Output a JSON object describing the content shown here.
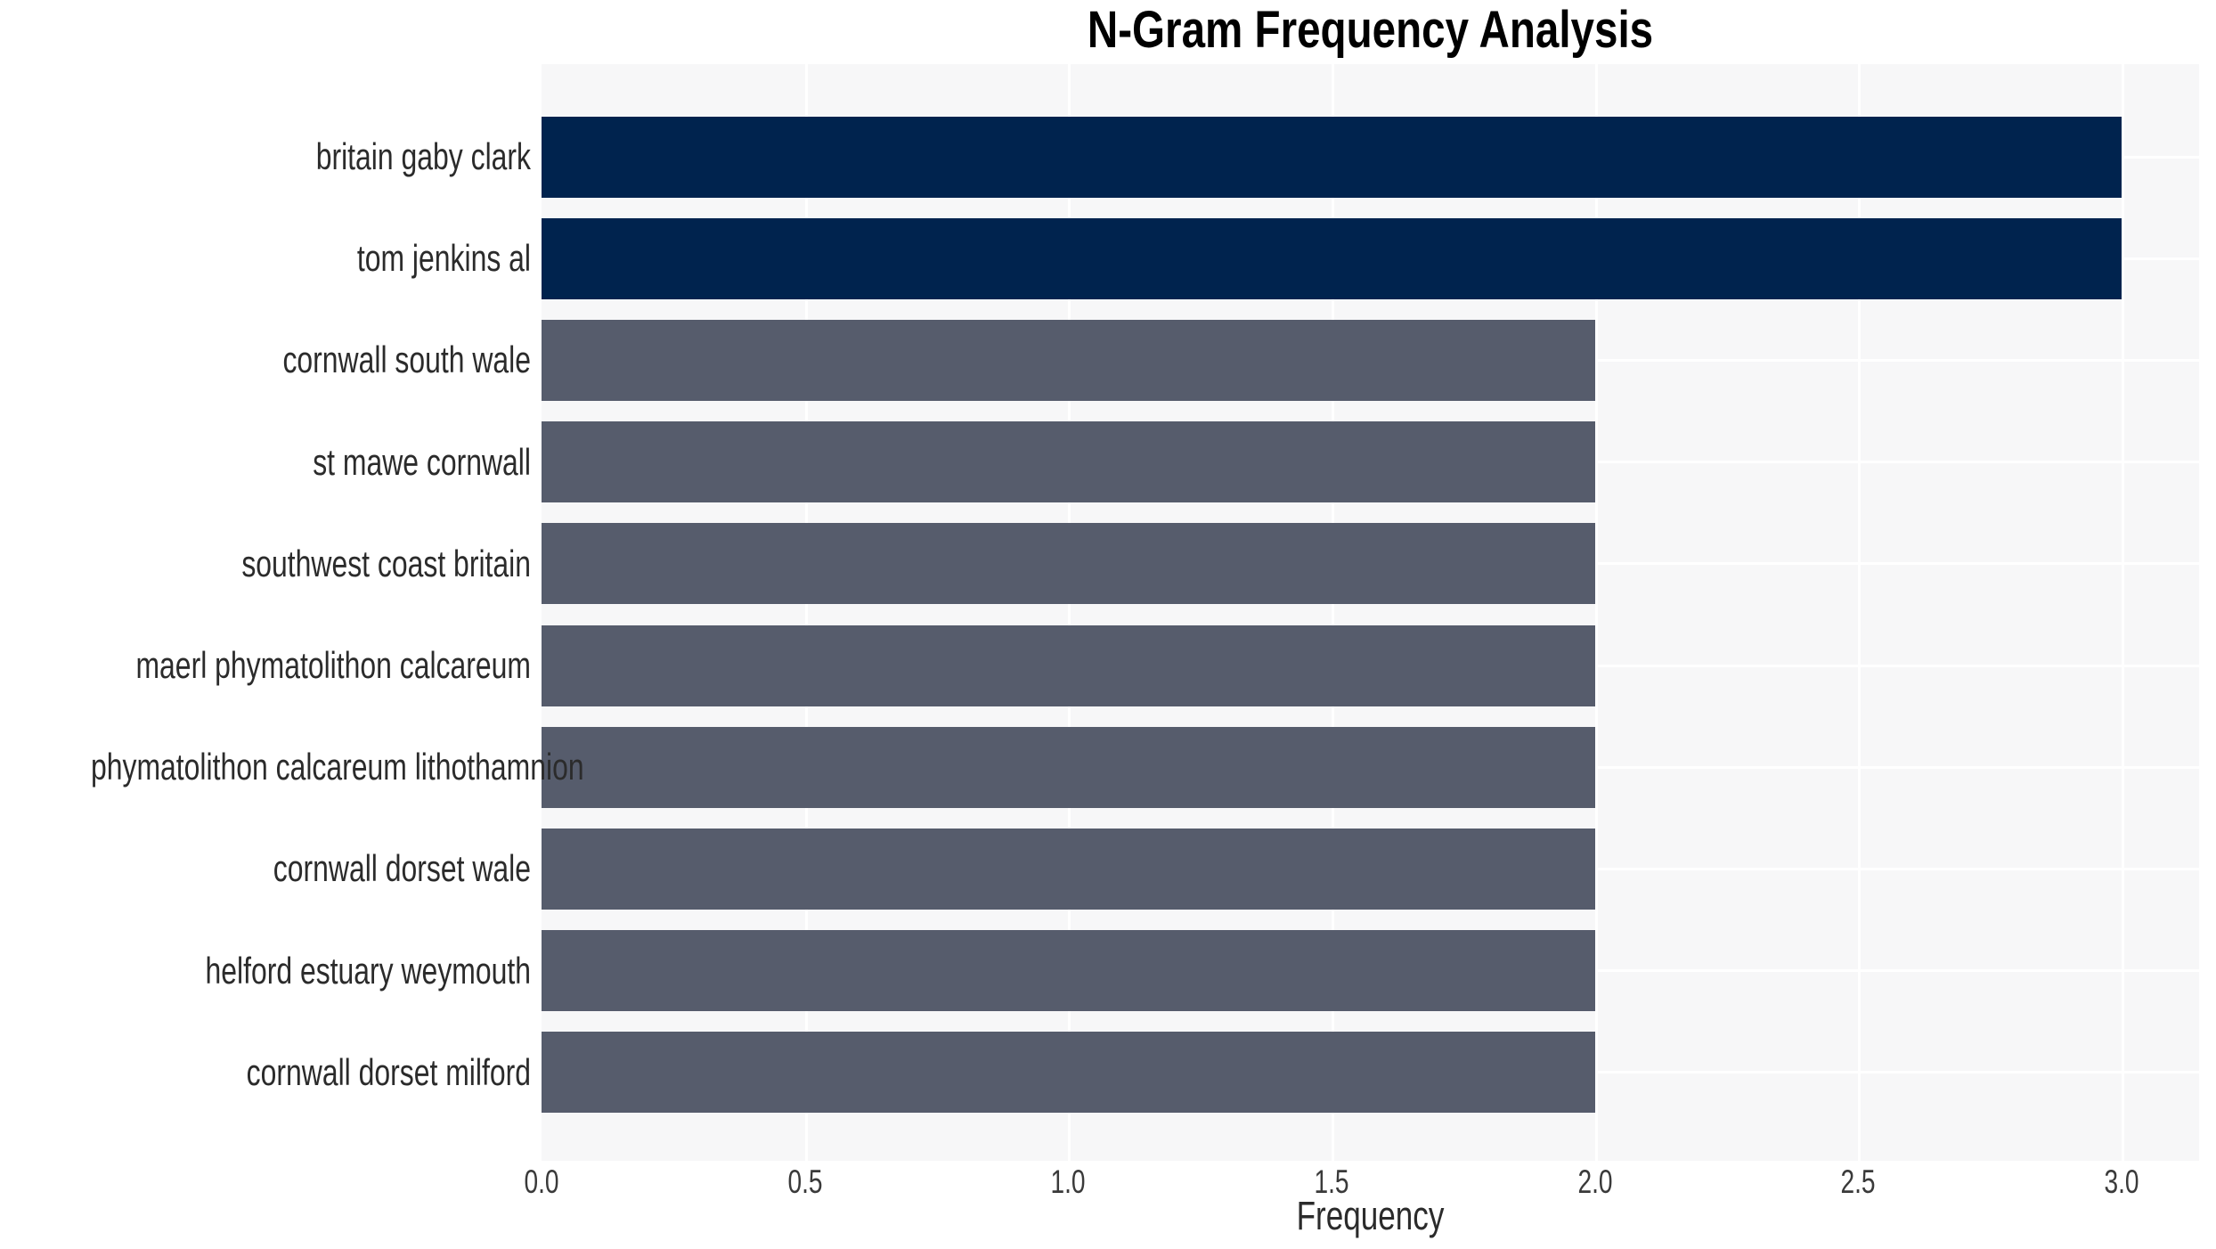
{
  "chart_data": {
    "type": "bar",
    "orientation": "horizontal",
    "title": "N-Gram Frequency Analysis",
    "xlabel": "Frequency",
    "ylabel": "",
    "categories": [
      "britain gaby clark",
      "tom jenkins al",
      "cornwall south wale",
      "st mawe cornwall",
      "southwest coast britain",
      "maerl phymatolithon calcareum",
      "phymatolithon calcareum lithothamnion",
      "cornwall dorset wale",
      "helford estuary weymouth",
      "cornwall dorset milford"
    ],
    "values": [
      3,
      3,
      2,
      2,
      2,
      2,
      2,
      2,
      2,
      2
    ],
    "bar_colors": [
      "#00234E",
      "#00234E",
      "#565C6C",
      "#565C6C",
      "#565C6C",
      "#565C6C",
      "#565C6C",
      "#565C6C",
      "#565C6C",
      "#565C6C"
    ],
    "xlim": [
      0,
      3.15
    ],
    "xticks": [
      0,
      0.5,
      1,
      1.5,
      2,
      2.5,
      3
    ],
    "xtick_labels": [
      "0.0",
      "0.5",
      "1.0",
      "1.5",
      "2.0",
      "2.5",
      "3.0"
    ],
    "grid": true,
    "gridline_color": "#ffffff",
    "panel_background": "#f7f7f8",
    "page_background": "#ffffff",
    "colors": {
      "high_frequency_bar": "#00234E",
      "low_frequency_bar": "#565C6C",
      "title_text": "#000000",
      "label_text": "#2b2b2b",
      "tick_text": "#3a3a3a"
    }
  }
}
